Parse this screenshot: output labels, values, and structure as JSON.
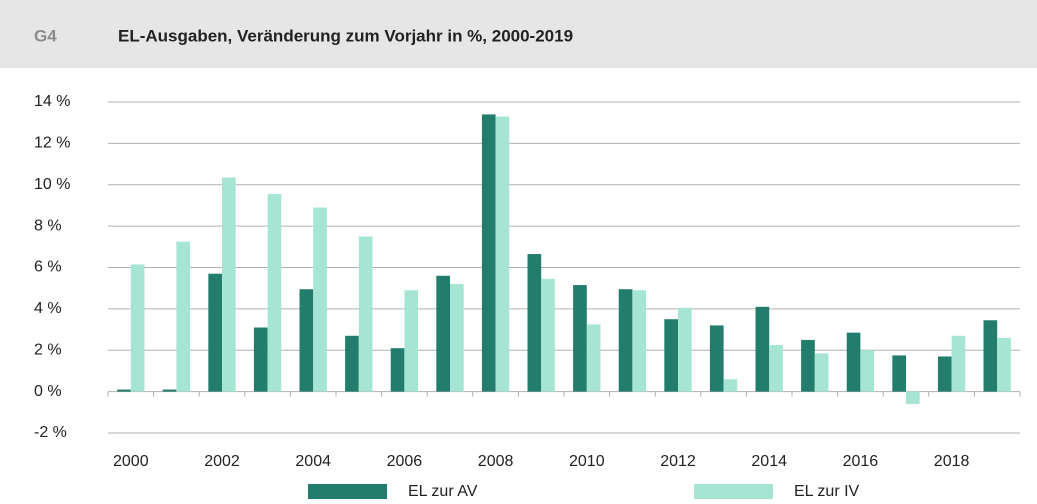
{
  "header": {
    "label": "G4",
    "title": "EL-Ausgaben, Veränderung zum Vorjahr in %, 2000-2019"
  },
  "chart_data": {
    "type": "bar",
    "categories": [
      "2000",
      null,
      "2002",
      null,
      "2004",
      null,
      "2006",
      null,
      "2008",
      null,
      "2010",
      null,
      "2012",
      null,
      "2014",
      null,
      "2016",
      null,
      "2018",
      null
    ],
    "series": [
      {
        "name": "EL zur AV",
        "color": "#237d6c",
        "values": [
          0.1,
          0.1,
          5.7,
          3.1,
          4.95,
          2.7,
          2.1,
          5.6,
          13.4,
          6.65,
          5.15,
          4.95,
          3.5,
          3.2,
          4.1,
          2.5,
          2.85,
          1.75,
          1.7,
          3.45
        ]
      },
      {
        "name": "EL zur IV",
        "color": "#a6e5d4",
        "values": [
          6.15,
          7.25,
          10.35,
          9.55,
          8.9,
          7.5,
          4.9,
          5.2,
          13.3,
          5.45,
          3.25,
          4.9,
          4.05,
          0.6,
          2.25,
          1.85,
          2.0,
          -0.6,
          2.7,
          2.6
        ]
      }
    ],
    "ylim": [
      -2,
      14
    ],
    "yticks": [
      {
        "value": -2,
        "label": "-2 %"
      },
      {
        "value": 0,
        "label": "0 %"
      },
      {
        "value": 2,
        "label": "2 %"
      },
      {
        "value": 4,
        "label": "4 %"
      },
      {
        "value": 6,
        "label": "6 %"
      },
      {
        "value": 8,
        "label": "8 %"
      },
      {
        "value": 10,
        "label": "10 %"
      },
      {
        "value": 12,
        "label": "12 %"
      },
      {
        "value": 14,
        "label": "14 %"
      }
    ],
    "grid": true,
    "legend": "bottom"
  }
}
